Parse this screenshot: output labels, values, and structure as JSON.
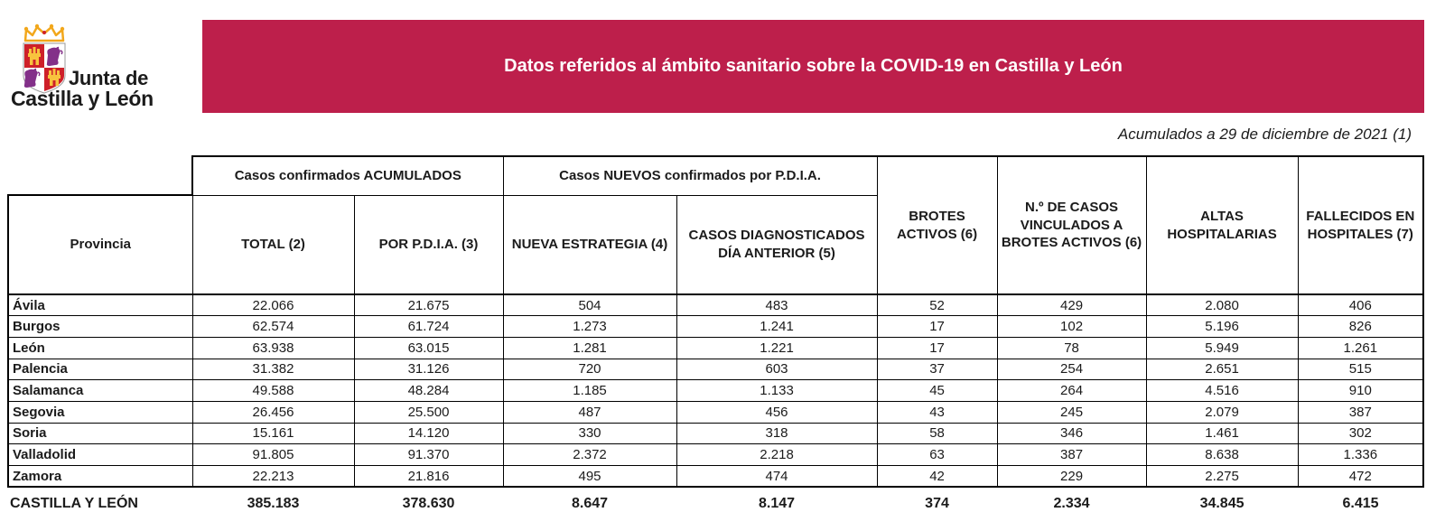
{
  "colors": {
    "banner_bg": "#bd1f4b",
    "banner_text": "#ffffff",
    "text": "#1b1b1b",
    "border": "#000000",
    "crest_red": "#ce2029",
    "crest_gold": "#f2a71b",
    "crest_yellow": "#f8c33e",
    "crest_purple": "#833089"
  },
  "logo": {
    "line1": "Junta de",
    "line2": "Castilla y León"
  },
  "banner": {
    "title": "Datos referidos al ámbito sanitario sobre la COVID-19 en Castilla y León"
  },
  "subtitle": "Acumulados a 29 de diciembre de 2021 (1)",
  "table": {
    "group_headers": [
      "Casos confirmados ACUMULADOS",
      "Casos NUEVOS confirmados por P.D.I.A."
    ],
    "columns": [
      "Provincia",
      "TOTAL (2)",
      "POR P.D.I.A. (3)",
      "NUEVA ESTRATEGIA (4)",
      "CASOS DIAGNOSTICADOS DÍA ANTERIOR (5)",
      "BROTES ACTIVOS (6)",
      "N.º DE CASOS VINCULADOS A BROTES ACTIVOS (6)",
      "ALTAS HOSPITALARIAS",
      "FALLECIDOS EN HOSPITALES (7)"
    ],
    "rows": [
      [
        "Ávila",
        "22.066",
        "21.675",
        "504",
        "483",
        "52",
        "429",
        "2.080",
        "406"
      ],
      [
        "Burgos",
        "62.574",
        "61.724",
        "1.273",
        "1.241",
        "17",
        "102",
        "5.196",
        "826"
      ],
      [
        "León",
        "63.938",
        "63.015",
        "1.281",
        "1.221",
        "17",
        "78",
        "5.949",
        "1.261"
      ],
      [
        "Palencia",
        "31.382",
        "31.126",
        "720",
        "603",
        "37",
        "254",
        "2.651",
        "515"
      ],
      [
        "Salamanca",
        "49.588",
        "48.284",
        "1.185",
        "1.133",
        "45",
        "264",
        "4.516",
        "910"
      ],
      [
        "Segovia",
        "26.456",
        "25.500",
        "487",
        "456",
        "43",
        "245",
        "2.079",
        "387"
      ],
      [
        "Soria",
        "15.161",
        "14.120",
        "330",
        "318",
        "58",
        "346",
        "1.461",
        "302"
      ],
      [
        "Valladolid",
        "91.805",
        "91.370",
        "2.372",
        "2.218",
        "63",
        "387",
        "8.638",
        "1.336"
      ],
      [
        "Zamora",
        "22.213",
        "21.816",
        "495",
        "474",
        "42",
        "229",
        "2.275",
        "472"
      ]
    ],
    "totals": {
      "label": "CASTILLA Y LEÓN",
      "values": [
        "385.183",
        "378.630",
        "8.647",
        "8.147",
        "374",
        "2.334",
        "34.845",
        "6.415"
      ]
    }
  }
}
